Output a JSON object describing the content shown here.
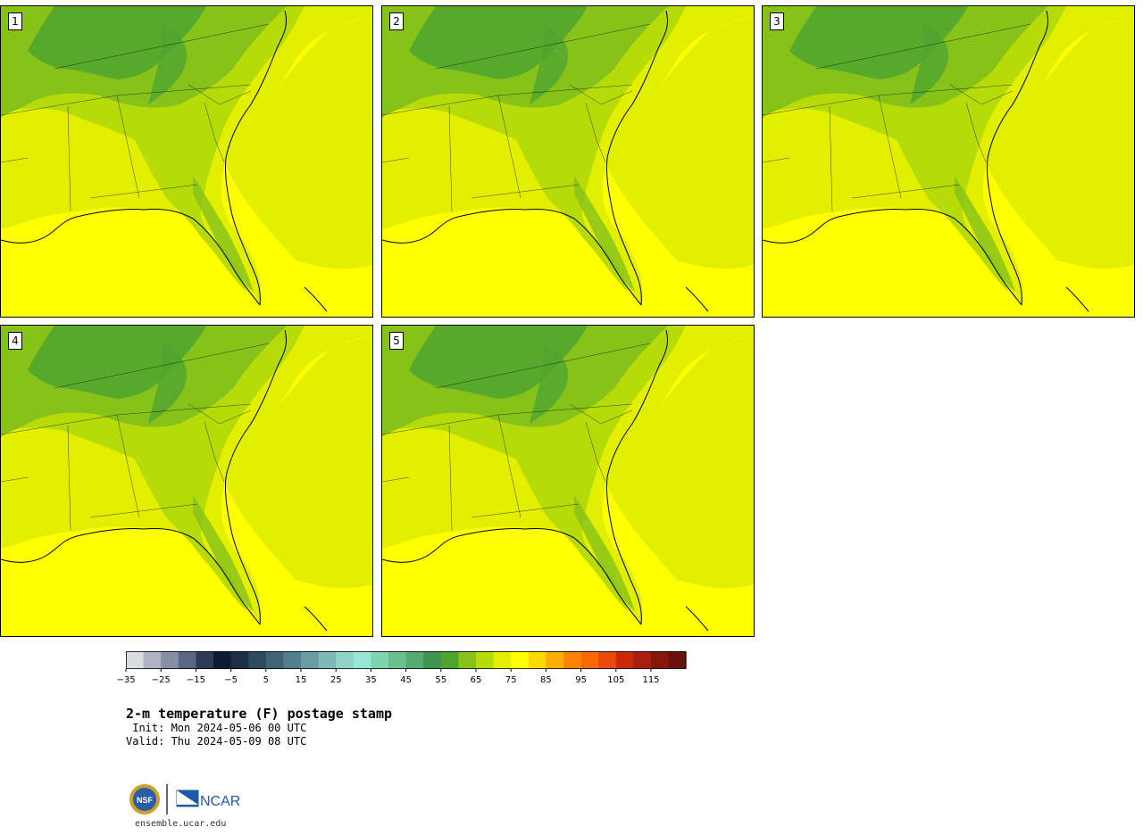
{
  "panels": [
    {
      "label": "1"
    },
    {
      "label": "2"
    },
    {
      "label": "3"
    },
    {
      "label": "4"
    },
    {
      "label": "5"
    }
  ],
  "colorbar": {
    "colors": [
      "#d8dde3",
      "#aeb4c4",
      "#858ea3",
      "#5b6684",
      "#2f3a56",
      "#0d1b33",
      "#1c2e48",
      "#2c4a62",
      "#3f6478",
      "#527f8d",
      "#6a9ba3",
      "#7fb8b6",
      "#8fd3c8",
      "#97e6d8",
      "#7fd4b0",
      "#6cc08f",
      "#56aa6e",
      "#3f954f",
      "#4fa42f",
      "#86c21a",
      "#b7db08",
      "#e2f000",
      "#ffff00",
      "#fcd800",
      "#fcae00",
      "#fc8400",
      "#fa6a00",
      "#e84a0a",
      "#c82a08",
      "#a81e0c",
      "#861608",
      "#6a120a"
    ],
    "tick_labels": [
      "−35",
      "−25",
      "−15",
      "−5",
      "5",
      "15",
      "25",
      "35",
      "45",
      "55",
      "65",
      "75",
      "85",
      "95",
      "105",
      "115"
    ]
  },
  "title": "2-m temperature (F) postage stamp",
  "init": " Init: Mon 2024-05-06 00 UTC",
  "valid": "Valid: Thu 2024-05-09 08 UTC",
  "site": "ensemble.ucar.edu",
  "logos": {
    "nsf": "NSF",
    "ncar": "NCAR"
  },
  "field_colors": {
    "warm": "#ffff00",
    "mild": "#e2f000",
    "cool": "#b7db08",
    "cooler": "#86c21a",
    "coolest": "#4fa42f"
  }
}
